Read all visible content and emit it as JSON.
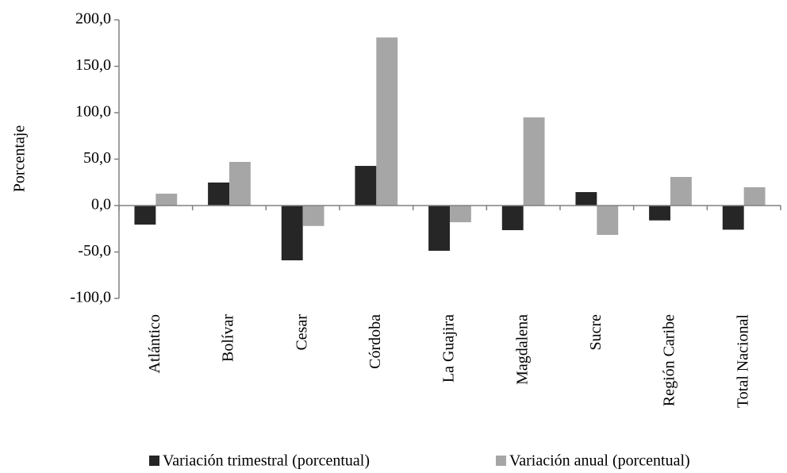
{
  "chart_data": {
    "type": "bar",
    "y_label": "Porcentaje",
    "categories": [
      "Atlántico",
      "Bolívar",
      "Cesar",
      "Córdoba",
      "La Guajira",
      "Magdalena",
      "Sucre",
      "Región Caribe",
      "Total Nacional"
    ],
    "series": [
      {
        "name": "Variación trimestral (porcentual)",
        "color": "#262626",
        "values": [
          -20.5,
          24.8,
          -59,
          42.7,
          -48.7,
          -26.5,
          14.5,
          -16,
          -26
        ]
      },
      {
        "name": "Variación anual (porcentual)",
        "color": "#a6a6a6",
        "values": [
          12.8,
          47,
          -22,
          181,
          -18,
          95,
          -31.6,
          30.8,
          19.7
        ]
      }
    ],
    "ylim": [
      -100,
      200
    ],
    "yticks": [
      {
        "value": -100,
        "label": "-100,0"
      },
      {
        "value": -50,
        "label": "-50,0"
      },
      {
        "value": 0,
        "label": "0,0"
      },
      {
        "value": 50,
        "label": "50,0"
      },
      {
        "value": 100,
        "label": "100,0"
      },
      {
        "value": 150,
        "label": "150,0"
      },
      {
        "value": 200,
        "label": "200,0"
      }
    ],
    "grid": false,
    "legend": "bottom"
  }
}
